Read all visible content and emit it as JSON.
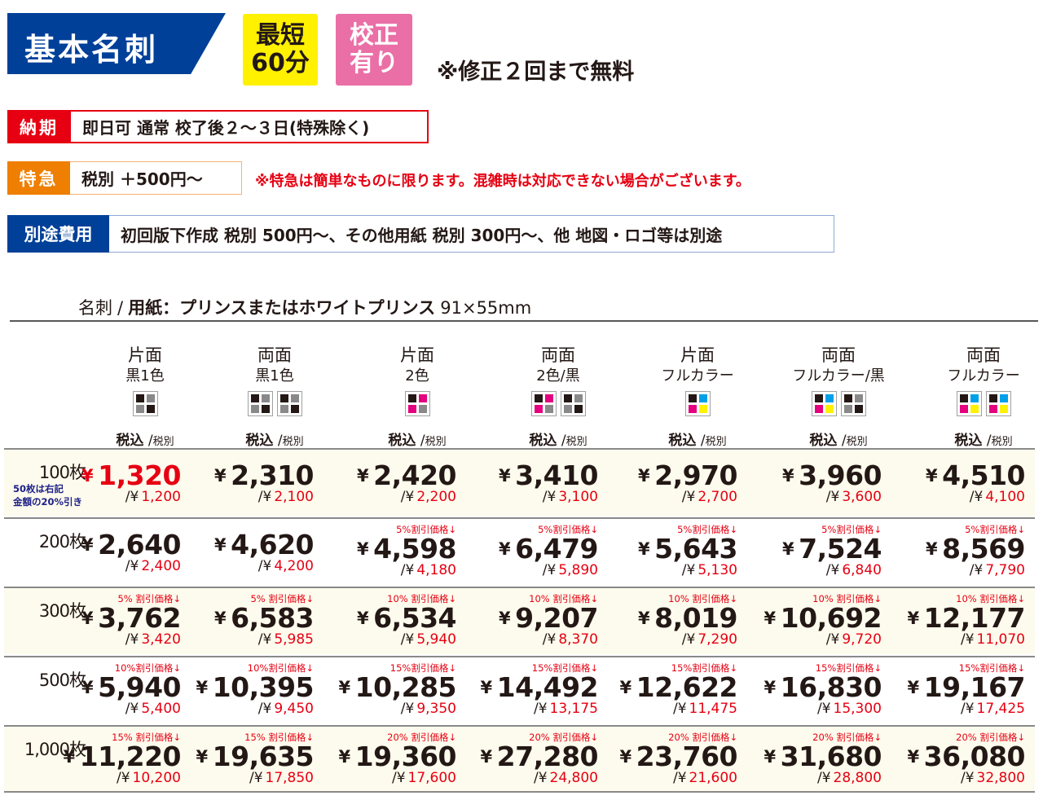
{
  "header": {
    "title": "基本名刺",
    "tag_short": "最短\n60分",
    "tag_proof": "校正\n有り",
    "free_revision_note": "※修正２回まで無料"
  },
  "info": {
    "delivery": {
      "label": "納期",
      "value": "即日可 通常 校了後２〜３日(特殊除く)"
    },
    "rush": {
      "label": "特急",
      "value": "税別 ＋500円〜",
      "note": "※特急は簡単なものに限ります。混雑時は対応できない場合がございます。"
    },
    "extra": {
      "label": "別途費用",
      "value": "初回版下作成 税別 500円〜、その他用紙 税別 300円〜、他 地図・ロゴ等は別途"
    }
  },
  "section": {
    "category": "名刺",
    "slash": "/",
    "paper": "用紙：プリンスまたはホワイトプリンス",
    "size": "91×55mm"
  },
  "colors": {
    "brand_blue": "#004098",
    "red": "#e60012",
    "orange": "#ee7f00",
    "yellow": "#fff100",
    "pink": "#ea6fa6",
    "row_shade": "#fdfbed",
    "ink_black": "#231815",
    "ink_gray": "#898989",
    "cyan": "#00a0e9",
    "magenta": "#e4007f",
    "process_yellow": "#fff100"
  },
  "tax_label": {
    "incl": "税込",
    "slash": "/",
    "excl": "税別"
  },
  "columns": [
    {
      "side": "片面",
      "color": "黒1色",
      "chips": [
        [
          "k",
          "g",
          "g",
          "k"
        ]
      ]
    },
    {
      "side": "両面",
      "color": "黒1色",
      "chips": [
        [
          "k",
          "g",
          "g",
          "k"
        ],
        [
          "k",
          "g",
          "g",
          "k"
        ]
      ]
    },
    {
      "side": "片面",
      "color": "2色",
      "chips": [
        [
          "k",
          "m",
          "m",
          "g"
        ]
      ]
    },
    {
      "side": "両面",
      "color": "2色/黒",
      "chips": [
        [
          "k",
          "m",
          "m",
          "g"
        ],
        [
          "k",
          "g",
          "g",
          "k"
        ]
      ]
    },
    {
      "side": "片面",
      "color": "フルカラー",
      "chips": [
        [
          "k",
          "c",
          "m",
          "y"
        ]
      ]
    },
    {
      "side": "両面",
      "color": "フルカラー/黒",
      "chips": [
        [
          "k",
          "c",
          "m",
          "y"
        ],
        [
          "k",
          "g",
          "g",
          "k"
        ]
      ]
    },
    {
      "side": "両面",
      "color": "フルカラー",
      "chips": [
        [
          "k",
          "c",
          "m",
          "y"
        ],
        [
          "k",
          "c",
          "m",
          "y"
        ]
      ]
    }
  ],
  "rows": [
    {
      "qty": "100枚",
      "note": "50枚は右記\n金額の20%引き",
      "shaded": true,
      "cells": [
        {
          "discount": "",
          "incl": "1,320",
          "excl": "1,200",
          "highlight": true
        },
        {
          "discount": "",
          "incl": "2,310",
          "excl": "2,100"
        },
        {
          "discount": "",
          "incl": "2,420",
          "excl": "2,200"
        },
        {
          "discount": "",
          "incl": "3,410",
          "excl": "3,100"
        },
        {
          "discount": "",
          "incl": "2,970",
          "excl": "2,700"
        },
        {
          "discount": "",
          "incl": "3,960",
          "excl": "3,600"
        },
        {
          "discount": "",
          "incl": "4,510",
          "excl": "4,100"
        }
      ]
    },
    {
      "qty": "200枚",
      "note": "",
      "shaded": false,
      "cells": [
        {
          "discount": "",
          "incl": "2,640",
          "excl": "2,400"
        },
        {
          "discount": "",
          "incl": "4,620",
          "excl": "4,200"
        },
        {
          "discount": "5%割引価格↓",
          "incl": "4,598",
          "excl": "4,180"
        },
        {
          "discount": "5%割引価格↓",
          "incl": "6,479",
          "excl": "5,890"
        },
        {
          "discount": "5%割引価格↓",
          "incl": "5,643",
          "excl": "5,130"
        },
        {
          "discount": "5%割引価格↓",
          "incl": "7,524",
          "excl": "6,840"
        },
        {
          "discount": "5%割引価格↓",
          "incl": "8,569",
          "excl": "7,790"
        }
      ]
    },
    {
      "qty": "300枚",
      "note": "",
      "shaded": true,
      "cells": [
        {
          "discount": "5% 割引価格↓",
          "incl": "3,762",
          "excl": "3,420"
        },
        {
          "discount": "5% 割引価格↓",
          "incl": "6,583",
          "excl": "5,985"
        },
        {
          "discount": "10% 割引価格↓",
          "incl": "6,534",
          "excl": "5,940"
        },
        {
          "discount": "10% 割引価格↓",
          "incl": "9,207",
          "excl": "8,370"
        },
        {
          "discount": "10% 割引価格↓",
          "incl": "8,019",
          "excl": "7,290"
        },
        {
          "discount": "10% 割引価格↓",
          "incl": "10,692",
          "excl": "9,720"
        },
        {
          "discount": "10% 割引価格↓",
          "incl": "12,177",
          "excl": "11,070"
        }
      ]
    },
    {
      "qty": "500枚",
      "note": "",
      "shaded": false,
      "cells": [
        {
          "discount": "10%割引価格↓",
          "incl": "5,940",
          "excl": "5,400"
        },
        {
          "discount": "10%割引価格↓",
          "incl": "10,395",
          "excl": "9,450"
        },
        {
          "discount": "15%割引価格↓",
          "incl": "10,285",
          "excl": "9,350"
        },
        {
          "discount": "15%割引価格↓",
          "incl": "14,492",
          "excl": "13,175"
        },
        {
          "discount": "15%割引価格↓",
          "incl": "12,622",
          "excl": "11,475"
        },
        {
          "discount": "15%割引価格↓",
          "incl": "16,830",
          "excl": "15,300"
        },
        {
          "discount": "15%割引価格↓",
          "incl": "19,167",
          "excl": "17,425"
        }
      ]
    },
    {
      "qty": "1,000枚",
      "note": "",
      "shaded": true,
      "cells": [
        {
          "discount": "15% 割引価格↓",
          "incl": "11,220",
          "excl": "10,200"
        },
        {
          "discount": "15% 割引価格↓",
          "incl": "19,635",
          "excl": "17,850"
        },
        {
          "discount": "20% 割引価格↓",
          "incl": "19,360",
          "excl": "17,600"
        },
        {
          "discount": "20% 割引価格↓",
          "incl": "27,280",
          "excl": "24,800"
        },
        {
          "discount": "20% 割引価格↓",
          "incl": "23,760",
          "excl": "21,600"
        },
        {
          "discount": "20% 割引価格↓",
          "incl": "31,680",
          "excl": "28,800"
        },
        {
          "discount": "20% 割引価格↓",
          "incl": "36,080",
          "excl": "32,800"
        }
      ]
    }
  ],
  "currency": {
    "symbol": "¥",
    "excl_prefix": "/¥"
  }
}
